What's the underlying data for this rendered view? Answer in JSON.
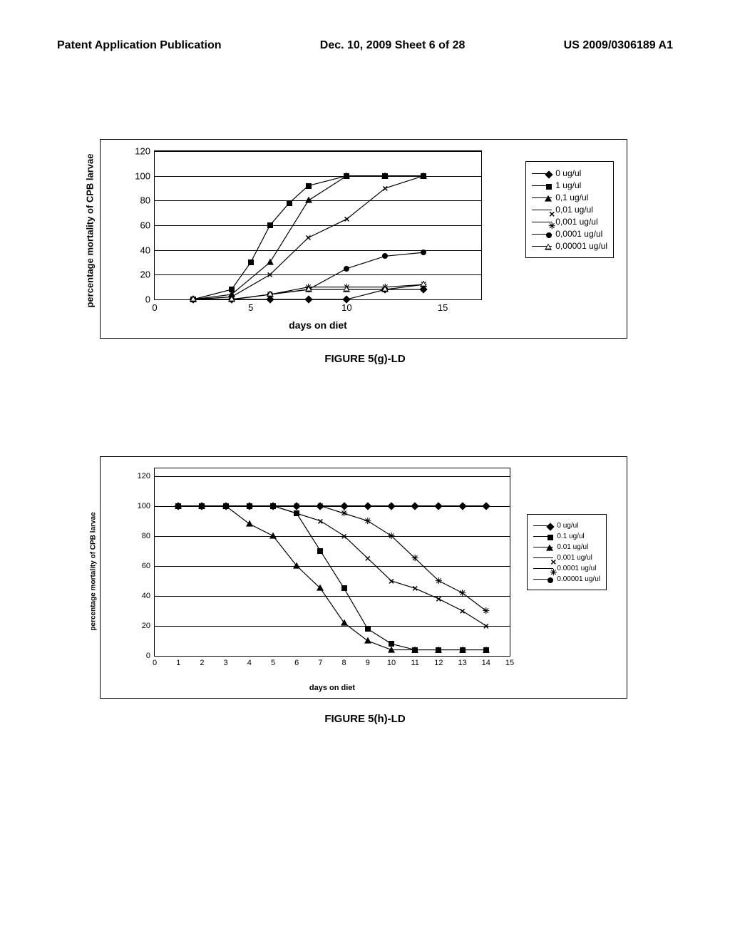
{
  "header": {
    "left": "Patent Application Publication",
    "center": "Dec. 10, 2009  Sheet 6 of 28",
    "right": "US 2009/0306189 A1"
  },
  "chart_g": {
    "type": "line",
    "title": "FIGURE 5(g)-LD",
    "x_label": "days on diet",
    "y_label": "percentage mortality of CPB larvae",
    "xlim": [
      0,
      17
    ],
    "ylim": [
      0,
      120
    ],
    "xticks": [
      0,
      5,
      10,
      15
    ],
    "yticks": [
      0,
      20,
      40,
      60,
      80,
      100,
      120
    ],
    "background_color": "#ffffff",
    "grid_color": "#000000",
    "border_color": "#000000",
    "label_fontsize": 13,
    "tick_fontsize": 13,
    "series": [
      {
        "label": "0 ug/ul",
        "marker": "diamond",
        "color": "#000000",
        "x": [
          2,
          4,
          6,
          8,
          10,
          12,
          14
        ],
        "y": [
          0,
          0,
          0,
          0,
          0,
          8,
          8
        ]
      },
      {
        "label": "1 ug/ul",
        "marker": "square",
        "color": "#000000",
        "x": [
          2,
          4,
          5,
          6,
          7,
          8,
          10,
          12,
          14
        ],
        "y": [
          0,
          8,
          30,
          60,
          78,
          92,
          100,
          100,
          100
        ]
      },
      {
        "label": "0,1 ug/ul",
        "marker": "triangle",
        "color": "#000000",
        "x": [
          2,
          4,
          6,
          8,
          10,
          12,
          14
        ],
        "y": [
          0,
          4,
          30,
          80,
          100,
          100,
          100
        ]
      },
      {
        "label": "0,01 ug/ul",
        "marker": "x",
        "color": "#000000",
        "x": [
          2,
          4,
          6,
          8,
          10,
          12,
          14
        ],
        "y": [
          0,
          2,
          20,
          50,
          65,
          90,
          100
        ]
      },
      {
        "label": "0,001 ug/ul",
        "marker": "star",
        "color": "#000000",
        "x": [
          2,
          4,
          6,
          8,
          10,
          12,
          14
        ],
        "y": [
          0,
          0,
          4,
          10,
          10,
          10,
          12
        ]
      },
      {
        "label": "0,0001 ug/ul",
        "marker": "circle",
        "color": "#000000",
        "x": [
          2,
          4,
          6,
          8,
          10,
          12,
          14
        ],
        "y": [
          0,
          0,
          4,
          8,
          25,
          35,
          38
        ]
      },
      {
        "label": "0,00001 ug/ul",
        "marker": "triangle-open",
        "color": "#000000",
        "x": [
          2,
          4,
          6,
          8,
          10,
          12,
          14
        ],
        "y": [
          0,
          0,
          4,
          8,
          8,
          8,
          12
        ]
      }
    ]
  },
  "chart_h": {
    "type": "line",
    "title": "FIGURE 5(h)-LD",
    "x_label": "days on diet",
    "y_label": "percentage mortality of CPB larvae",
    "xlim": [
      0,
      15
    ],
    "ylim": [
      0,
      125
    ],
    "xticks": [
      0,
      1,
      2,
      3,
      4,
      5,
      6,
      7,
      8,
      9,
      10,
      11,
      12,
      13,
      14,
      15
    ],
    "yticks": [
      0,
      20,
      40,
      60,
      80,
      100,
      120
    ],
    "background_color": "#ffffff",
    "grid_color": "#000000",
    "border_color": "#000000",
    "label_fontsize": 10,
    "tick_fontsize": 11,
    "series": [
      {
        "label": "0 ug/ul",
        "marker": "diamond",
        "color": "#000000",
        "x": [
          1,
          2,
          3,
          4,
          5,
          6,
          7,
          8,
          9,
          10,
          11,
          12,
          13,
          14
        ],
        "y": [
          100,
          100,
          100,
          100,
          100,
          100,
          100,
          100,
          100,
          100,
          100,
          100,
          100,
          100
        ]
      },
      {
        "label": "0.1 ug/ul",
        "marker": "square",
        "color": "#000000",
        "x": [
          1,
          2,
          3,
          4,
          5,
          6,
          7,
          8,
          9,
          10,
          11,
          12,
          13,
          14
        ],
        "y": [
          100,
          100,
          100,
          100,
          100,
          95,
          70,
          45,
          18,
          8,
          4,
          4,
          4,
          4
        ]
      },
      {
        "label": "0.01 ug/ul",
        "marker": "triangle",
        "color": "#000000",
        "x": [
          1,
          2,
          3,
          4,
          5,
          6,
          7,
          8,
          9,
          10,
          11,
          12,
          13,
          14
        ],
        "y": [
          100,
          100,
          100,
          88,
          80,
          60,
          45,
          22,
          10,
          4,
          4,
          4,
          4,
          4
        ]
      },
      {
        "label": "0.001 ug/ul",
        "marker": "x",
        "color": "#000000",
        "x": [
          1,
          2,
          3,
          4,
          5,
          6,
          7,
          8,
          9,
          10,
          11,
          12,
          13,
          14
        ],
        "y": [
          100,
          100,
          100,
          100,
          100,
          95,
          90,
          80,
          65,
          50,
          45,
          38,
          30,
          20
        ]
      },
      {
        "label": "0.0001 ug/ul",
        "marker": "star",
        "color": "#000000",
        "x": [
          1,
          2,
          3,
          4,
          5,
          6,
          7,
          8,
          9,
          10,
          11,
          12,
          13,
          14
        ],
        "y": [
          100,
          100,
          100,
          100,
          100,
          100,
          100,
          95,
          90,
          80,
          65,
          50,
          42,
          30
        ]
      },
      {
        "label": "0.00001 ug/ul",
        "marker": "circle",
        "color": "#000000",
        "x": [
          1,
          2,
          3,
          4,
          5,
          6,
          7,
          8,
          9,
          10,
          11,
          12,
          13,
          14
        ],
        "y": [
          100,
          100,
          100,
          100,
          100,
          100,
          100,
          100,
          100,
          100,
          100,
          100,
          100,
          100
        ]
      }
    ]
  }
}
